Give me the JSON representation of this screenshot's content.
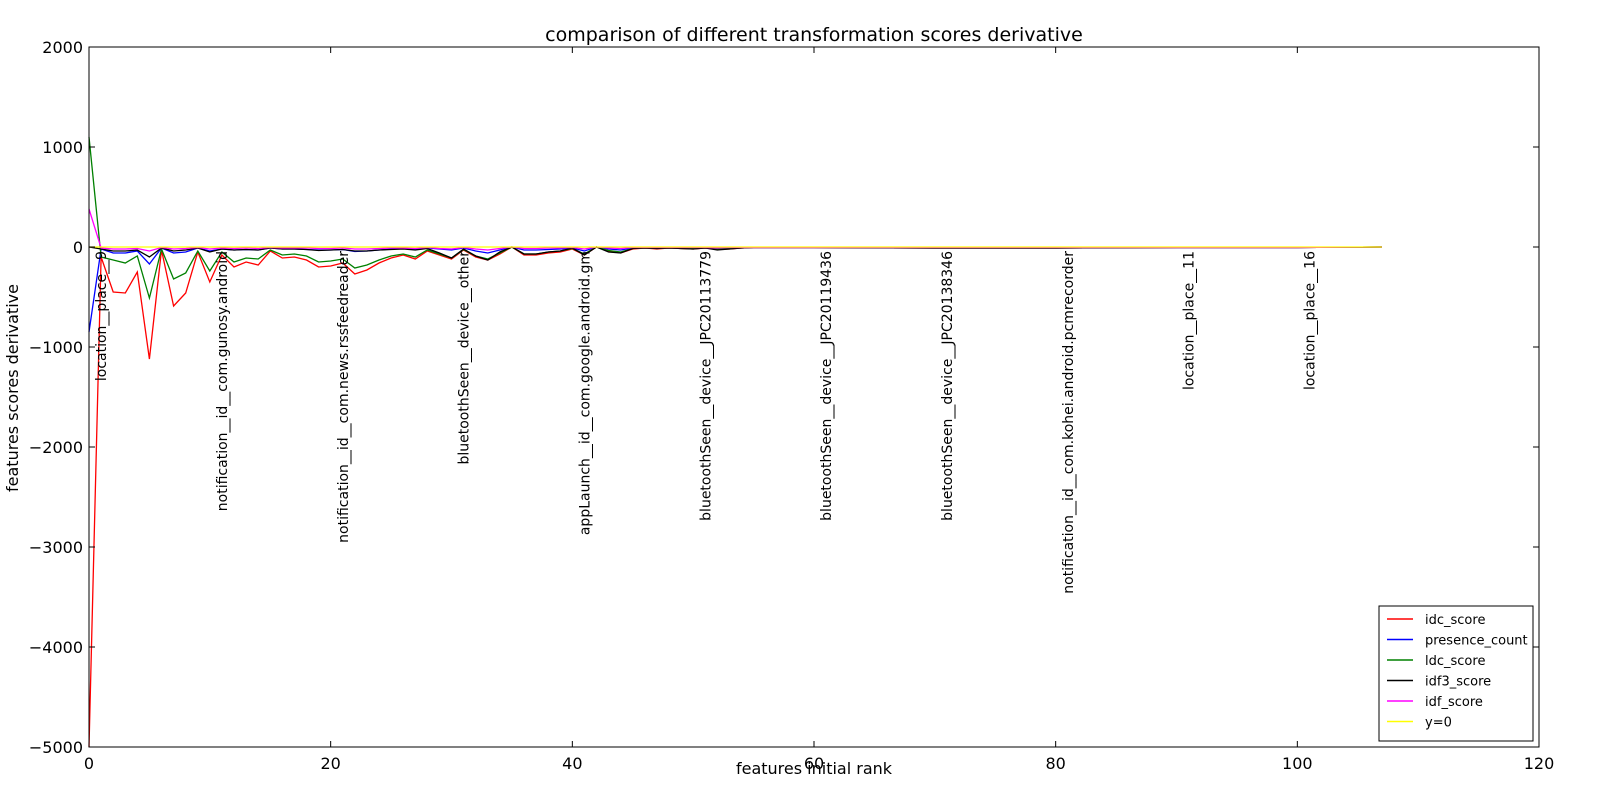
{
  "chart_data": {
    "type": "line",
    "title": "comparison of different transformation scores derivative",
    "xlabel": "features initial rank",
    "ylabel": "features scores derivative",
    "xlim": [
      0,
      120
    ],
    "ylim": [
      -5000,
      2000
    ],
    "xticks": [
      0,
      20,
      40,
      60,
      80,
      100,
      120
    ],
    "yticks": [
      -5000,
      -4000,
      -3000,
      -2000,
      -1000,
      0,
      1000,
      2000
    ],
    "ytick_labels": [
      "−5000",
      "−4000",
      "−3000",
      "−2000",
      "−1000",
      "0",
      "1000",
      "2000"
    ],
    "grid": false,
    "legend_position": "lower-right",
    "series": [
      {
        "name": "idc_score",
        "color": "#ff0000",
        "x": [
          0,
          1,
          2,
          3,
          4,
          5,
          6,
          7,
          8,
          9,
          10,
          11,
          12,
          13,
          14,
          15,
          16,
          17,
          18,
          19,
          20,
          21,
          22,
          23,
          24,
          25,
          26,
          27,
          28,
          29,
          30,
          31,
          32,
          33,
          34,
          35,
          36,
          37,
          38,
          39,
          40,
          41,
          42,
          43,
          44,
          45,
          46,
          47,
          48,
          49,
          50,
          51,
          52,
          53,
          54,
          55,
          60,
          70,
          80,
          90,
          100,
          107
        ],
        "y": [
          -5000,
          -100,
          -450,
          -460,
          -250,
          -1120,
          -30,
          -590,
          -460,
          -50,
          -350,
          -80,
          -200,
          -150,
          -180,
          -40,
          -110,
          -100,
          -130,
          -200,
          -190,
          -160,
          -270,
          -230,
          -160,
          -110,
          -80,
          -120,
          -40,
          -80,
          -120,
          -30,
          -100,
          -130,
          -70,
          0,
          -80,
          -80,
          -60,
          -50,
          -20,
          -80,
          0,
          -40,
          -60,
          -20,
          -10,
          -20,
          -10,
          -15,
          -20,
          -10,
          -25,
          -20,
          -10,
          -5,
          -5,
          -10,
          -10,
          -5,
          -5,
          0
        ]
      },
      {
        "name": "presence_count",
        "color": "#0000ff",
        "x": [
          0,
          1,
          2,
          3,
          4,
          5,
          6,
          7,
          8,
          9,
          10,
          11,
          12,
          13,
          14,
          15,
          16,
          17,
          18,
          19,
          20,
          21,
          22,
          23,
          24,
          25,
          26,
          27,
          28,
          29,
          30,
          31,
          32,
          33,
          34,
          35,
          36,
          37,
          38,
          39,
          40,
          41,
          42,
          43,
          44,
          45,
          46,
          47,
          48,
          49,
          50,
          51,
          52,
          53,
          54,
          55,
          60,
          70,
          80,
          90,
          100,
          107
        ],
        "y": [
          -850,
          -20,
          -60,
          -60,
          -40,
          -170,
          -10,
          -60,
          -50,
          -10,
          -40,
          -20,
          -30,
          -25,
          -30,
          -10,
          -20,
          -20,
          -25,
          -30,
          -30,
          -25,
          -45,
          -40,
          -30,
          -20,
          -15,
          -25,
          -10,
          -20,
          -30,
          -10,
          -40,
          -60,
          -30,
          0,
          -30,
          -30,
          -25,
          -20,
          -10,
          -40,
          0,
          -20,
          -30,
          -10,
          -5,
          -10,
          -5,
          -10,
          -10,
          -5,
          -15,
          -10,
          -5,
          -5,
          -5,
          -5,
          -5,
          -5,
          -5,
          0
        ]
      },
      {
        "name": "ldc_score",
        "color": "#008000",
        "x": [
          0,
          1,
          2,
          3,
          4,
          5,
          6,
          7,
          8,
          9,
          10,
          11,
          12,
          13,
          14,
          15,
          16,
          17,
          18,
          19,
          20,
          21,
          22,
          23,
          24,
          25,
          26,
          27,
          28,
          29,
          30,
          31,
          32,
          33,
          34,
          35,
          36,
          37,
          38,
          39,
          40,
          41,
          42,
          43,
          44,
          45,
          46,
          47,
          48,
          49,
          50,
          51,
          52,
          53,
          54,
          55,
          60,
          70,
          80,
          90,
          100,
          107
        ],
        "y": [
          1100,
          -100,
          -130,
          -160,
          -90,
          -510,
          -20,
          -320,
          -260,
          -40,
          -240,
          -50,
          -150,
          -110,
          -120,
          -30,
          -80,
          -70,
          -90,
          -150,
          -140,
          -120,
          -210,
          -180,
          -130,
          -90,
          -70,
          -100,
          -30,
          -70,
          -110,
          -25,
          -90,
          -120,
          -60,
          0,
          -70,
          -70,
          -50,
          -40,
          -15,
          -70,
          0,
          -35,
          -50,
          -15,
          -10,
          -15,
          -10,
          -15,
          -15,
          -10,
          -20,
          -15,
          -10,
          -5,
          -5,
          -10,
          -10,
          -5,
          -5,
          0
        ]
      },
      {
        "name": "idf3_score",
        "color": "#000000",
        "x": [
          0,
          1,
          2,
          3,
          4,
          5,
          6,
          7,
          8,
          9,
          10,
          11,
          12,
          13,
          14,
          15,
          16,
          17,
          18,
          19,
          20,
          21,
          22,
          23,
          24,
          25,
          26,
          27,
          28,
          29,
          30,
          31,
          32,
          33,
          34,
          35,
          36,
          37,
          38,
          39,
          40,
          41,
          42,
          43,
          44,
          45,
          46,
          47,
          48,
          49,
          50,
          51,
          52,
          53,
          54,
          55,
          60,
          70,
          80,
          90,
          100,
          107
        ],
        "y": [
          0,
          -20,
          -40,
          -40,
          -30,
          -100,
          -10,
          -40,
          -30,
          -10,
          -50,
          -20,
          -30,
          -25,
          -30,
          -10,
          -20,
          -20,
          -25,
          -35,
          -30,
          -25,
          -40,
          -40,
          -30,
          -25,
          -20,
          -30,
          -15,
          -60,
          -110,
          -20,
          -90,
          -130,
          -50,
          0,
          -70,
          -70,
          -50,
          -40,
          -10,
          -80,
          0,
          -50,
          -60,
          -15,
          -10,
          -15,
          -10,
          -15,
          -20,
          -10,
          -30,
          -20,
          -10,
          -5,
          -5,
          -10,
          -10,
          -5,
          -5,
          0
        ]
      },
      {
        "name": "idf_score",
        "color": "#ff00ff",
        "x": [
          0,
          1,
          2,
          3,
          4,
          5,
          6,
          7,
          8,
          9,
          10,
          11,
          12,
          13,
          14,
          15,
          16,
          17,
          18,
          19,
          20,
          21,
          22,
          23,
          24,
          25,
          26,
          27,
          28,
          29,
          30,
          31,
          32,
          33,
          34,
          35,
          36,
          37,
          38,
          39,
          40,
          41,
          42,
          43,
          44,
          45,
          46,
          47,
          48,
          49,
          50,
          51,
          52,
          53,
          54,
          55,
          60,
          70,
          80,
          90,
          100,
          107
        ],
        "y": [
          380,
          -10,
          -20,
          -20,
          -15,
          -40,
          -5,
          -20,
          -15,
          -5,
          -20,
          -10,
          -15,
          -10,
          -15,
          -5,
          -10,
          -10,
          -10,
          -15,
          -15,
          -10,
          -20,
          -20,
          -15,
          -10,
          -10,
          -15,
          -5,
          -15,
          -20,
          -5,
          -20,
          -30,
          -15,
          0,
          -15,
          -15,
          -10,
          -10,
          -5,
          -20,
          0,
          -10,
          -15,
          -5,
          -5,
          -5,
          -5,
          -5,
          -5,
          -5,
          -10,
          -5,
          -5,
          -5,
          -5,
          -5,
          -5,
          -5,
          -5,
          0
        ]
      },
      {
        "name": "y=0",
        "color": "#ffff00",
        "x": [
          0,
          107
        ],
        "y": [
          0,
          0
        ]
      }
    ],
    "annotations": [
      {
        "text": "location__place__9",
        "x": 1,
        "y": 0
      },
      {
        "text": "notification__id__com.gunosy.android",
        "x": 11,
        "y": 0
      },
      {
        "text": "notification__id__com.news.rssfeedreader",
        "x": 21,
        "y": 0
      },
      {
        "text": "bluetoothSeen__device__other",
        "x": 31,
        "y": 0
      },
      {
        "text": "appLaunch__id__com.google.android.gm",
        "x": 41,
        "y": 0
      },
      {
        "text": "bluetoothSeen__device__JPC20113779",
        "x": 51,
        "y": 0
      },
      {
        "text": "bluetoothSeen__device__JPC20119436",
        "x": 61,
        "y": 0
      },
      {
        "text": "bluetoothSeen__device__JPC20138346",
        "x": 71,
        "y": 0
      },
      {
        "text": "notification__id__com.kohei.android.pcmrecorder",
        "x": 81,
        "y": 0
      },
      {
        "text": "location__place__11",
        "x": 91,
        "y": 0
      },
      {
        "text": "location__place__16",
        "x": 101,
        "y": 0
      }
    ]
  }
}
